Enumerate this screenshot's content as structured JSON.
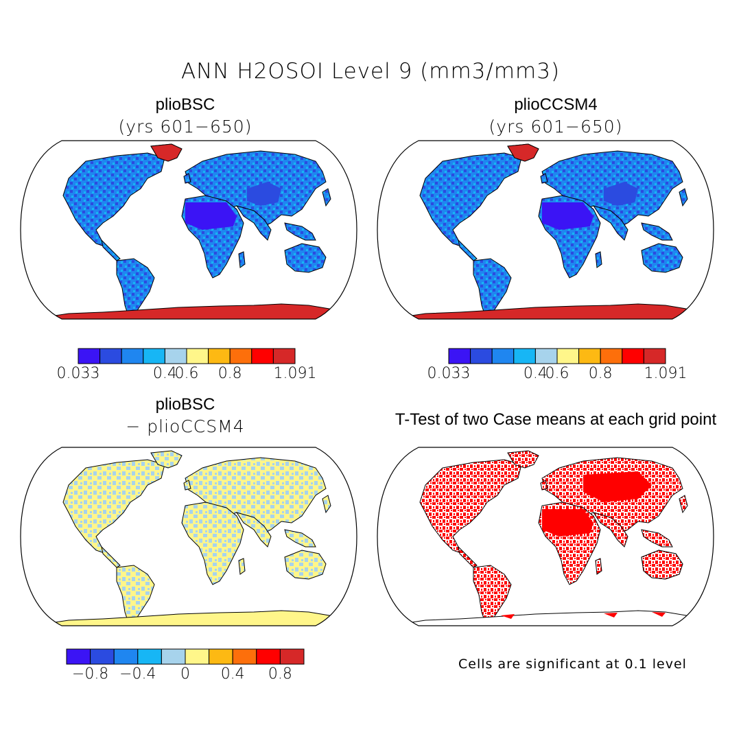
{
  "figure": {
    "title": "ANN H2OSOI Level 9 (mm3/mm3)"
  },
  "panels": [
    {
      "id": "top-left",
      "title": "plioBSC",
      "subtitle": "(yrs 601−650)",
      "field": "absolute"
    },
    {
      "id": "top-right",
      "title": "plioCCSM4",
      "subtitle": "(yrs 601−650)",
      "field": "absolute"
    },
    {
      "id": "bottom-left",
      "title": "plioBSC",
      "subtitle": "− plioCCSM4",
      "field": "difference"
    },
    {
      "id": "bottom-right",
      "title": "T-Test of two Case means at each grid point",
      "field": "significance"
    }
  ],
  "colorbars": {
    "absolute": {
      "colors": [
        "#3b14f5",
        "#2b4be0",
        "#1f86f0",
        "#17b6f5",
        "#a7d3ec",
        "#fff68a",
        "#fdb913",
        "#fd6f0b",
        "#ff0000",
        "#d62828"
      ],
      "tick_labels": [
        "0.033",
        "0.4",
        "0.6",
        "0.8",
        "1.091"
      ],
      "tick_positions": [
        0,
        4,
        5,
        7,
        10
      ]
    },
    "difference": {
      "colors": [
        "#3b14f5",
        "#2b4be0",
        "#1f86f0",
        "#17b6f5",
        "#a7d3ec",
        "#fff68a",
        "#fdb913",
        "#fd6f0b",
        "#ff0000",
        "#d62828"
      ],
      "tick_labels": [
        "−0.8",
        "−0.4",
        "0",
        "0.4",
        "0.8"
      ],
      "tick_positions": [
        1,
        3,
        5,
        7,
        9
      ]
    }
  },
  "significance_note": "Cells are significant at 0.1 level",
  "map_colors": {
    "land_dry": "#3b14f5",
    "land_mid": "#1f86f0",
    "land_wet": "#2b4be0",
    "ice": "#d62828",
    "greenland": "#d62828",
    "diff_pos": "#fff68a",
    "diff_neg": "#a7d3ec",
    "signif": "#ff0000",
    "coast": "#000000"
  }
}
